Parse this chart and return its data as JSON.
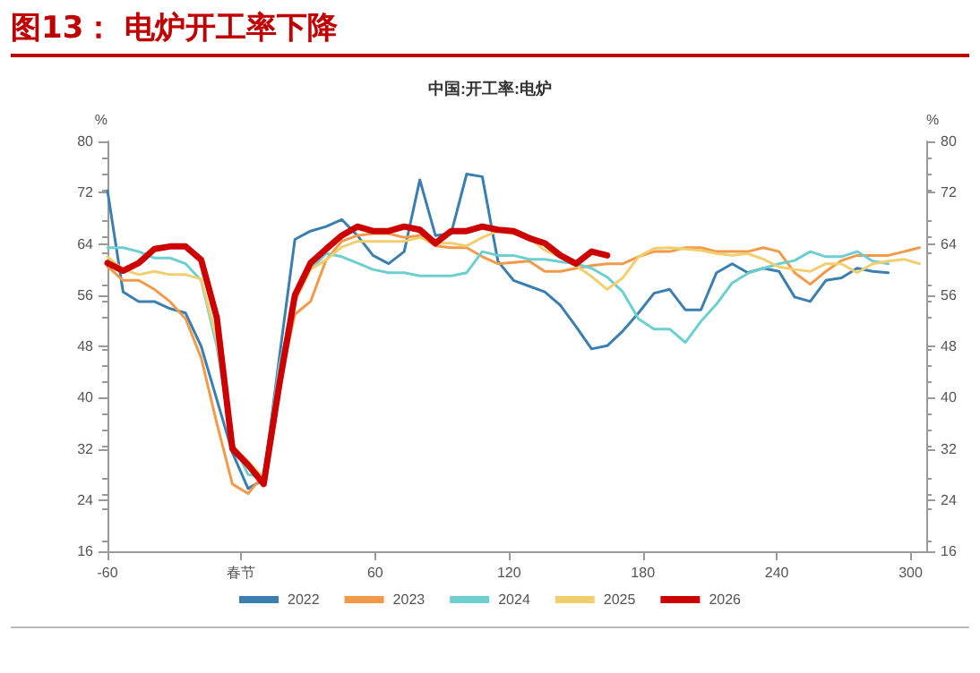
{
  "chart_data": {
    "type": "line",
    "title": "图13： 电炉开工率下降",
    "subtitle": "中国:开工率:电炉",
    "ylabel": "%",
    "y2label": "%",
    "xlim": [
      -60,
      307
    ],
    "xticks": [
      -60,
      {
        "value": 0,
        "label": "春节"
      },
      60,
      120,
      180,
      240,
      300
    ],
    "ylim": [
      16,
      80
    ],
    "yticks": [
      16,
      24,
      32,
      40,
      48,
      56,
      64,
      72,
      80
    ],
    "y2lim": [
      16,
      80
    ],
    "y2ticks": [
      16,
      24,
      32,
      40,
      48,
      56,
      64,
      72,
      80
    ],
    "grid": false,
    "legend": "bottom",
    "marker": "none",
    "line_style": "solid",
    "series": [
      {
        "name": "2022",
        "color": "#3a7fb0",
        "x": [
          -60,
          -53,
          -46,
          -39,
          -32,
          -25,
          -18,
          -11,
          -4,
          3,
          10,
          17,
          24,
          31,
          38,
          45,
          52,
          59,
          66,
          73,
          80,
          87,
          94,
          101,
          108,
          115,
          122,
          129,
          136,
          143,
          150,
          157,
          164,
          171,
          178,
          185,
          192,
          199,
          206,
          213,
          220,
          227,
          234,
          241,
          248,
          255,
          262,
          269,
          276,
          283,
          290
        ],
        "values": [
          72.3,
          56.5,
          55,
          55,
          53.9,
          53.2,
          48,
          39.7,
          31.4,
          25.8,
          27.2,
          46.2,
          64.7,
          66,
          66.7,
          67.8,
          65.3,
          62.2,
          60.9,
          62.8,
          74,
          65.3,
          65.6,
          74.9,
          74.5,
          61.3,
          58.3,
          57.4,
          56.5,
          54.4,
          51.1,
          47.6,
          48.1,
          50.4,
          53.2,
          56.3,
          56.9,
          53.7,
          53.7,
          59.5,
          60.9,
          59.5,
          60.2,
          59.7,
          55.7,
          55,
          58.3,
          58.7,
          60.2,
          59.7,
          59.5
        ]
      },
      {
        "name": "2023",
        "color": "#f39a4a",
        "x": [
          -60,
          -53,
          -46,
          -39,
          -32,
          -25,
          -18,
          -11,
          -4,
          3,
          10,
          17,
          24,
          31,
          38,
          45,
          52,
          59,
          66,
          73,
          80,
          87,
          94,
          101,
          108,
          115,
          122,
          129,
          136,
          143,
          150,
          157,
          164,
          171,
          178,
          185,
          192,
          199,
          206,
          213,
          220,
          227,
          234,
          241,
          248,
          255,
          262,
          269,
          276,
          283,
          290,
          297,
          304
        ],
        "values": [
          60.5,
          58.3,
          58.3,
          56.9,
          55,
          52.3,
          46.2,
          36,
          26.5,
          25,
          28,
          42,
          53,
          55,
          61.5,
          64.4,
          65.3,
          65.6,
          65.6,
          65,
          65.3,
          63.7,
          63.4,
          63.4,
          62,
          60.9,
          61.1,
          61.3,
          59.7,
          59.7,
          60.2,
          60.6,
          60.9,
          60.9,
          62,
          62.8,
          62.8,
          63.4,
          63.4,
          62.8,
          62.8,
          62.8,
          63.4,
          62.8,
          59.5,
          57.7,
          59.7,
          61.4,
          62.2,
          62.2,
          62.2,
          62.8,
          63.4
        ]
      },
      {
        "name": "2024",
        "color": "#6dcfcf",
        "x": [
          -60,
          -53,
          -46,
          -39,
          -32,
          -25,
          -18,
          -11,
          -4,
          3,
          10,
          17,
          24,
          31,
          38,
          45,
          52,
          59,
          66,
          73,
          80,
          87,
          94,
          101,
          108,
          115,
          122,
          129,
          136,
          143,
          150,
          157,
          164,
          171,
          178,
          185,
          192,
          199,
          206,
          213,
          220,
          227,
          234,
          241,
          248,
          255,
          262,
          269,
          276,
          283,
          290
        ],
        "values": [
          63.4,
          63.4,
          62.8,
          61.8,
          61.8,
          60.9,
          58.3,
          48,
          33,
          28,
          27.5,
          45,
          55,
          60,
          62.5,
          62,
          61,
          60,
          59.5,
          59.5,
          59,
          59,
          59,
          59.5,
          62.8,
          62.2,
          62.2,
          61.6,
          61.6,
          61.2,
          60.9,
          60.2,
          58.8,
          56.5,
          52.3,
          50.7,
          50.7,
          48.6,
          51.9,
          54.6,
          57.9,
          59.4,
          60.2,
          60.9,
          61.4,
          62.8,
          62,
          62,
          62.8,
          61.3,
          60.9
        ]
      },
      {
        "name": "2025",
        "color": "#f2cf6e",
        "x": [
          -60,
          -53,
          -46,
          -39,
          -32,
          -25,
          -18,
          -11,
          -4,
          3,
          10,
          17,
          24,
          31,
          38,
          45,
          52,
          59,
          66,
          73,
          80,
          87,
          94,
          101,
          108,
          115,
          122,
          129,
          136,
          143,
          150,
          157,
          164,
          171,
          178,
          185,
          192,
          199,
          206,
          213,
          220,
          227,
          234,
          241,
          248,
          255,
          262,
          269,
          276,
          283,
          290,
          297,
          304
        ],
        "values": [
          62,
          60,
          59.2,
          59.7,
          59.2,
          59.2,
          58.5,
          49,
          32.5,
          30,
          27.5,
          42,
          55,
          60,
          61.5,
          63.5,
          64.4,
          64.4,
          64.4,
          64.4,
          65,
          64.1,
          64.1,
          63.7,
          65,
          66,
          65.6,
          64.9,
          63,
          62,
          60.6,
          58.9,
          56.9,
          58.7,
          62,
          63.3,
          63.4,
          63.2,
          63,
          62.5,
          62.2,
          62.5,
          61.6,
          60.4,
          60,
          59.7,
          60.9,
          60.9,
          59.5,
          60.9,
          61.3,
          61.6,
          60.9
        ]
      },
      {
        "name": "2026",
        "color": "#cc0000",
        "x": [
          -60,
          -53,
          -46,
          -39,
          -32,
          -25,
          -18,
          -11,
          -4,
          3,
          10,
          17,
          24,
          31,
          38,
          45,
          52,
          59,
          66,
          73,
          80,
          87,
          94,
          101,
          108,
          115,
          122,
          129,
          136,
          143,
          150,
          157,
          164
        ],
        "values": [
          61,
          59.8,
          61,
          63.2,
          63.6,
          63.6,
          61.5,
          52.5,
          32,
          29.5,
          26.5,
          42,
          56,
          61,
          63.2,
          65.3,
          66.7,
          66,
          66,
          66.7,
          66.2,
          64.1,
          66,
          66,
          66.7,
          66.2,
          66,
          64.9,
          64.1,
          62.2,
          60.9,
          62.8,
          62.2
        ]
      }
    ]
  }
}
